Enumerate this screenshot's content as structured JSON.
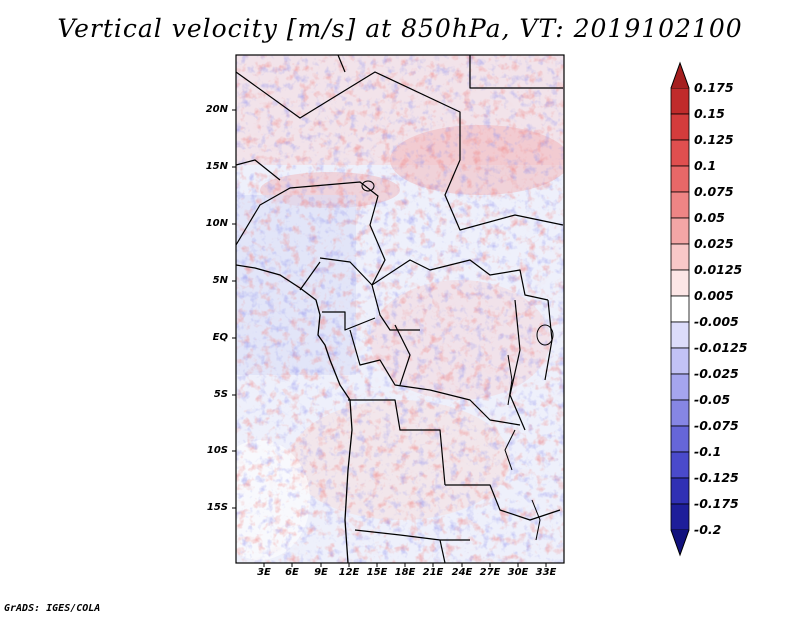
{
  "title": "Vertical velocity [m/s] at 850hPa, VT: 2019102100",
  "credit": "GrADS: IGES/COLA",
  "map": {
    "lat_labels": [
      "20N",
      "15N",
      "10N",
      "5N",
      "EQ",
      "5S",
      "10S",
      "15S"
    ],
    "lon_labels": [
      "3E",
      "6E",
      "9E",
      "12E",
      "15E",
      "18E",
      "21E",
      "24E",
      "27E",
      "30E",
      "33E"
    ]
  },
  "colorbar": {
    "labels": [
      "0.175",
      "0.15",
      "0.125",
      "0.1",
      "0.075",
      "0.05",
      "0.025",
      "0.0125",
      "0.005",
      "-0.005",
      "-0.0125",
      "-0.025",
      "-0.05",
      "-0.075",
      "-0.1",
      "-0.125",
      "-0.175",
      "-0.2"
    ],
    "colors": [
      "#a51f1f",
      "#c02b2b",
      "#d43c3c",
      "#e04f4f",
      "#e86868",
      "#ee8585",
      "#f3a6a6",
      "#f8c8c8",
      "#fce6e6",
      "#ffffff",
      "#dcdcfa",
      "#c2c2f5",
      "#a5a5ee",
      "#8686e4",
      "#6666d8",
      "#4a4acb",
      "#3030b4",
      "#1e1e9a",
      "#12127e"
    ]
  }
}
